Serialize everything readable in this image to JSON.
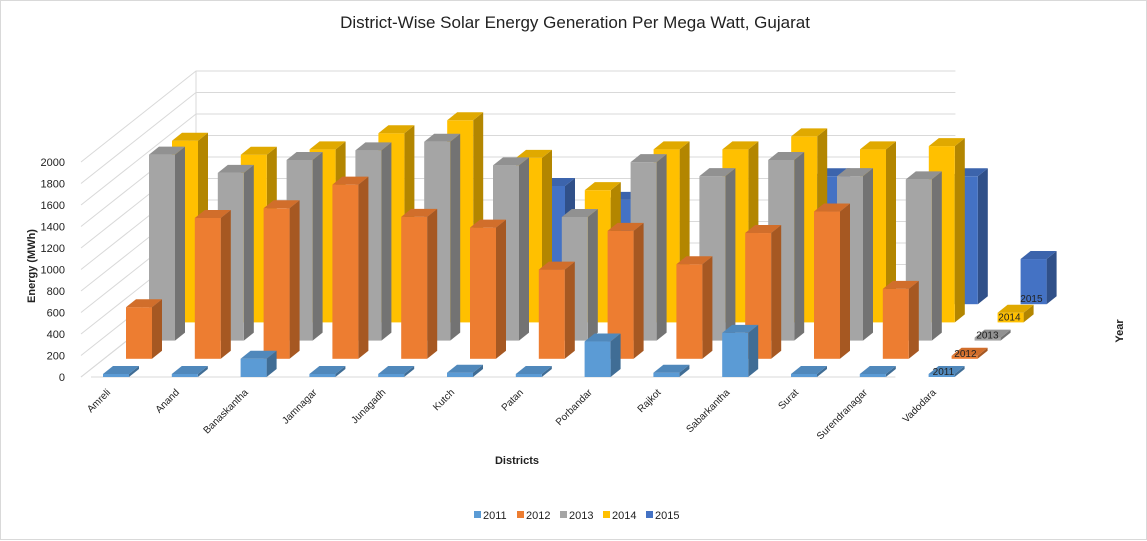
{
  "chart_data": {
    "type": "bar",
    "title": "District-Wise Solar Energy Generation Per Mega Watt, Gujarat",
    "xlabel": "Districts",
    "ylabel": "Energy (MWh)",
    "zlabel": "Year",
    "ylim": [
      0,
      2000
    ],
    "yticks": [
      0,
      200,
      400,
      600,
      800,
      1000,
      1200,
      1400,
      1600,
      1800,
      2000
    ],
    "categories": [
      "Amreli",
      "Anand",
      "Banaskantha",
      "Jamnagar",
      "Junagadh",
      "Kutch",
      "Patan",
      "Porbandar",
      "Rajkot",
      "Sabarkantha",
      "Surat",
      "Surendranagar",
      "Vadodara"
    ],
    "series": [
      {
        "name": "2011",
        "color": "#5B9BD5",
        "values": [
          0,
          0,
          170,
          0,
          0,
          40,
          0,
          330,
          40,
          410,
          0,
          0,
          0
        ]
      },
      {
        "name": "2012",
        "color": "#ED7D31",
        "values": [
          480,
          1310,
          1400,
          1620,
          1320,
          1220,
          830,
          1190,
          880,
          1170,
          1370,
          650,
          0
        ]
      },
      {
        "name": "2013",
        "color": "#A5A5A5",
        "values": [
          1730,
          1560,
          1680,
          1770,
          1850,
          1630,
          1150,
          1660,
          1530,
          1680,
          1530,
          1500,
          0
        ]
      },
      {
        "name": "2014",
        "color": "#FFC000",
        "values": [
          1690,
          1560,
          1610,
          1760,
          1880,
          1530,
          1230,
          1610,
          1610,
          1730,
          1610,
          1640,
          90
        ]
      },
      {
        "name": "2015",
        "color": "#4472C4",
        "values": [
          0,
          0,
          0,
          0,
          0,
          1100,
          970,
          0,
          0,
          1190,
          0,
          1190,
          420
        ]
      }
    ],
    "legend_position": "bottom",
    "grid": true
  }
}
